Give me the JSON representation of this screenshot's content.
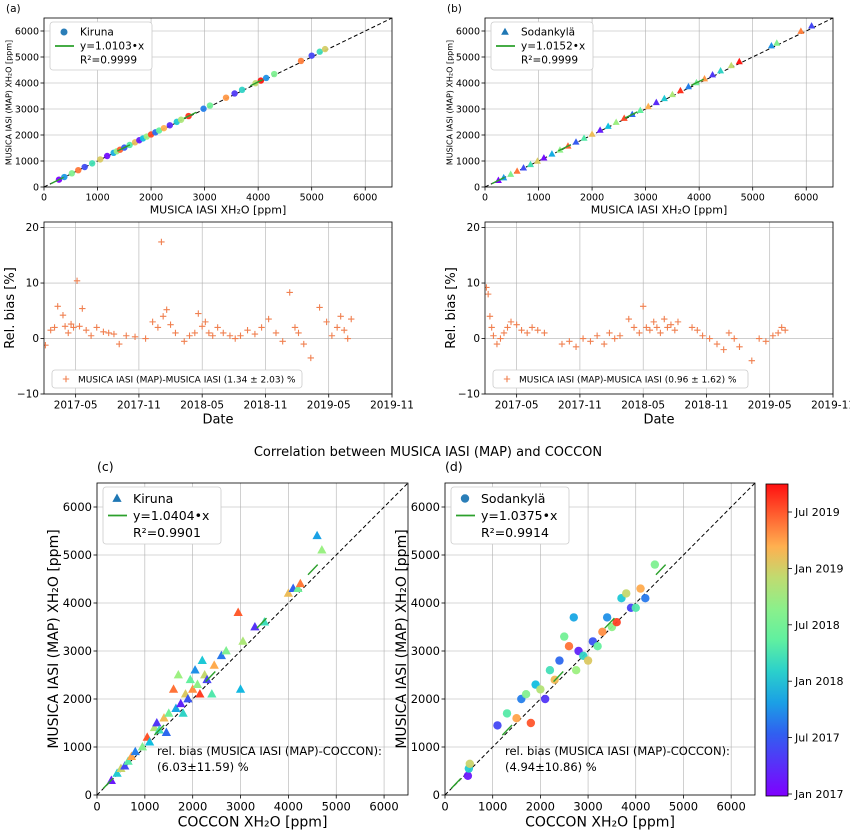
{
  "figure_title": "Correlation between MUSICA IASI (MAP) and COCCON",
  "colors": {
    "kiruna_marker": "#1f77b4",
    "fit_line": "#2ca02c",
    "bias_marker": "#f08050",
    "one_to_one": "#000000"
  },
  "colorbar": {
    "labels": [
      "Jul 2019",
      "Jan 2019",
      "Jul 2018",
      "Jan 2018",
      "Jul 2017",
      "Jan 2017"
    ],
    "colormap": "rainbow"
  },
  "chart_data": [
    {
      "panel": "(a)",
      "type": "scatter",
      "xlabel": "MUSICA IASI XH₂O [ppm]",
      "ylabel": "MUSICA IASI (MAP) XH₂O [ppm]",
      "xlim": [
        0,
        6500
      ],
      "ylim": [
        0,
        6500
      ],
      "xticks": [
        "0",
        "1000",
        "2000",
        "3000",
        "4000",
        "5000",
        "6000"
      ],
      "yticks": [
        "0",
        "1000",
        "2000",
        "3000",
        "4000",
        "5000",
        "6000"
      ],
      "legend": {
        "marker": "circle",
        "site": "Kiruna",
        "fit": "y=1.0103•x",
        "r2": "R²=0.9999"
      },
      "fit_slope": 1.0103,
      "grid": true,
      "x": [
        280,
        380,
        520,
        640,
        760,
        900,
        1050,
        1180,
        1300,
        1360,
        1420,
        1500,
        1600,
        1700,
        1780,
        1850,
        1920,
        2000,
        2080,
        2150,
        2240,
        2350,
        2480,
        2560,
        2700,
        2980,
        3100,
        3400,
        3560,
        3700,
        3950,
        4050,
        4150,
        4300,
        4800,
        5000,
        5150,
        5250
      ],
      "y": [
        283,
        384,
        525,
        647,
        768,
        909,
        1061,
        1192,
        1313,
        1374,
        1435,
        1515,
        1616,
        1717,
        1798,
        1869,
        1940,
        2021,
        2101,
        2172,
        2263,
        2374,
        2505,
        2587,
        2728,
        3011,
        3132,
        3435,
        3597,
        3738,
        3991,
        4092,
        4193,
        4344,
        4849,
        5052,
        5203,
        5304
      ]
    },
    {
      "panel": "(b)",
      "type": "scatter",
      "xlabel": "MUSICA IASI XH₂O [ppm]",
      "ylabel": "MUSICA IASI (MAP) XH₂O [ppm]",
      "xlim": [
        0,
        6500
      ],
      "ylim": [
        0,
        6500
      ],
      "xticks": [
        "0",
        "1000",
        "2000",
        "3000",
        "4000",
        "5000",
        "6000"
      ],
      "yticks": [
        "0",
        "1000",
        "2000",
        "3000",
        "4000",
        "5000",
        "6000"
      ],
      "legend": {
        "marker": "triangle",
        "site": "Sodankylä",
        "fit": "y=1.0152•x",
        "r2": "R²=0.9999"
      },
      "fit_slope": 1.0152,
      "grid": true,
      "x": [
        250,
        350,
        480,
        600,
        720,
        850,
        980,
        1100,
        1250,
        1400,
        1550,
        1700,
        1850,
        2000,
        2150,
        2300,
        2450,
        2600,
        2750,
        2900,
        3050,
        3200,
        3350,
        3500,
        3650,
        3800,
        3950,
        4100,
        4250,
        4400,
        4600,
        4750,
        5350,
        5450,
        5900,
        6100
      ],
      "y": [
        254,
        355,
        487,
        609,
        731,
        863,
        995,
        1117,
        1269,
        1421,
        1574,
        1726,
        1878,
        2030,
        2183,
        2335,
        2487,
        2640,
        2792,
        2944,
        3096,
        3249,
        3401,
        3553,
        3705,
        3858,
        4010,
        4162,
        4315,
        4467,
        4670,
        4822,
        5431,
        5533,
        5990,
        6193
      ]
    },
    {
      "panel": "(a-bias)",
      "type": "scatter",
      "xlabel": "Date",
      "ylabel": "Rel. bias [%]",
      "xlim": [
        "2017-02",
        "2019-11"
      ],
      "ylim": [
        -10,
        21
      ],
      "xticks": [
        "2017-05",
        "2017-11",
        "2018-05",
        "2018-11",
        "2019-05",
        "2019-11"
      ],
      "yticks": [
        "20",
        "10",
        "0",
        "−10"
      ],
      "legend": {
        "marker": "plus",
        "text": "MUSICA IASI (MAP)-MUSICA IASI (1.34 ± 2.03) %"
      },
      "grid": true,
      "x": [
        "2017-02-05",
        "2017-02-20",
        "2017-03-01",
        "2017-03-10",
        "2017-03-25",
        "2017-04-01",
        "2017-04-10",
        "2017-04-18",
        "2017-04-25",
        "2017-05-05",
        "2017-05-12",
        "2017-05-20",
        "2017-06-01",
        "2017-06-15",
        "2017-07-01",
        "2017-07-20",
        "2017-08-05",
        "2017-08-20",
        "2017-09-05",
        "2017-09-25",
        "2017-10-20",
        "2017-11-20",
        "2017-12-10",
        "2017-12-25",
        "2018-01-05",
        "2018-01-10",
        "2018-01-20",
        "2018-02-01",
        "2018-02-15",
        "2018-03-10",
        "2018-03-25",
        "2018-04-10",
        "2018-04-20",
        "2018-05-01",
        "2018-05-10",
        "2018-05-20",
        "2018-06-01",
        "2018-06-15",
        "2018-07-01",
        "2018-07-20",
        "2018-08-05",
        "2018-08-20",
        "2018-09-10",
        "2018-10-01",
        "2018-10-20",
        "2018-11-10",
        "2018-12-01",
        "2018-12-20",
        "2019-01-10",
        "2019-01-25",
        "2019-02-05",
        "2019-02-20",
        "2019-03-10",
        "2019-04-05",
        "2019-04-25",
        "2019-05-10",
        "2019-05-25",
        "2019-06-05",
        "2019-06-15",
        "2019-06-25",
        "2019-07-05"
      ],
      "y": [
        -1.2,
        1.5,
        2.0,
        5.8,
        4.2,
        2.2,
        1.0,
        2.6,
        2.0,
        10.4,
        2.2,
        5.4,
        1.5,
        0.5,
        2.0,
        1.2,
        1.0,
        0.8,
        -1.0,
        0.5,
        0.3,
        0.0,
        3.0,
        2.0,
        17.4,
        4.0,
        5.2,
        2.5,
        1.0,
        -0.5,
        0.5,
        1.0,
        4.5,
        2.2,
        3.0,
        1.0,
        0.5,
        2.0,
        1.0,
        0.5,
        0.0,
        0.5,
        1.5,
        0.8,
        2.0,
        3.5,
        1.0,
        -0.5,
        8.3,
        2.0,
        1.0,
        -1.0,
        -3.5,
        5.6,
        3.0,
        0.5,
        2.0,
        4.0,
        1.5,
        0.0,
        3.5
      ]
    },
    {
      "panel": "(b-bias)",
      "type": "scatter",
      "xlabel": "Date",
      "ylabel": "Rel. bias [%]",
      "xlim": [
        "2017-02",
        "2019-11"
      ],
      "ylim": [
        -10,
        21
      ],
      "xticks": [
        "2017-05",
        "2017-11",
        "2018-05",
        "2018-11",
        "2019-05",
        "2019-11"
      ],
      "yticks": [
        "20",
        "10",
        "0",
        "−10"
      ],
      "legend": {
        "marker": "plus",
        "text": "MUSICA IASI (MAP)-MUSICA IASI (0.96 ± 1.62) %"
      },
      "grid": true,
      "x": [
        "2017-02-05",
        "2017-02-10",
        "2017-02-15",
        "2017-02-20",
        "2017-02-25",
        "2017-03-05",
        "2017-03-15",
        "2017-03-25",
        "2017-04-05",
        "2017-04-15",
        "2017-05-01",
        "2017-05-15",
        "2017-06-01",
        "2017-06-15",
        "2017-07-01",
        "2017-07-20",
        "2017-09-10",
        "2017-10-01",
        "2017-10-20",
        "2017-11-10",
        "2017-12-01",
        "2017-12-20",
        "2018-01-10",
        "2018-01-25",
        "2018-02-10",
        "2018-02-25",
        "2018-03-20",
        "2018-04-05",
        "2018-04-20",
        "2018-05-01",
        "2018-05-10",
        "2018-05-20",
        "2018-06-01",
        "2018-06-10",
        "2018-06-20",
        "2018-07-01",
        "2018-07-10",
        "2018-07-20",
        "2018-08-01",
        "2018-08-10",
        "2018-09-20",
        "2018-10-05",
        "2018-10-20",
        "2018-11-10",
        "2018-12-01",
        "2018-12-20",
        "2019-01-05",
        "2019-01-20",
        "2019-02-05",
        "2019-03-10",
        "2019-04-01",
        "2019-04-20",
        "2019-05-10",
        "2019-05-25",
        "2019-06-05",
        "2019-06-15"
      ],
      "y": [
        9.2,
        8.0,
        4.0,
        2.0,
        0.5,
        -1.0,
        0.0,
        1.0,
        2.0,
        3.0,
        2.5,
        1.5,
        1.0,
        2.0,
        1.5,
        1.0,
        -1.0,
        -0.5,
        -1.5,
        0.0,
        -0.5,
        0.5,
        -1.0,
        1.0,
        0.0,
        0.5,
        3.5,
        2.0,
        1.0,
        5.8,
        2.0,
        1.5,
        3.0,
        2.0,
        1.0,
        3.5,
        2.0,
        2.5,
        1.5,
        3.0,
        2.0,
        1.5,
        0.5,
        0.0,
        -1.0,
        -2.0,
        1.0,
        0.0,
        -1.5,
        -4.0,
        0.0,
        -0.5,
        0.5,
        1.0,
        2.0,
        1.5
      ]
    },
    {
      "panel": "(c)",
      "type": "scatter",
      "xlabel": "COCCON XH₂O [ppm]",
      "ylabel": "MUSICA IASI (MAP) XH₂O [ppm]",
      "xlim": [
        0,
        6500
      ],
      "ylim": [
        0,
        6500
      ],
      "xticks": [
        "0",
        "1000",
        "2000",
        "3000",
        "4000",
        "5000",
        "6000"
      ],
      "yticks": [
        "0",
        "1000",
        "2000",
        "3000",
        "4000",
        "5000",
        "6000"
      ],
      "legend": {
        "marker": "triangle",
        "site": "Kiruna",
        "fit": "y=1.0404•x",
        "r2": "R²=0.9901"
      },
      "fit_slope": 1.0404,
      "annotation": [
        "rel. bias (MUSICA IASI (MAP)-COCCON):",
        "(6.03±11.59) %"
      ],
      "grid": true,
      "x": [
        300,
        420,
        500,
        580,
        650,
        720,
        800,
        950,
        1050,
        1100,
        1200,
        1250,
        1300,
        1400,
        1450,
        1500,
        1600,
        1650,
        1700,
        1750,
        1800,
        1850,
        1900,
        1950,
        2000,
        2050,
        2100,
        2150,
        2200,
        2250,
        2300,
        2400,
        2450,
        2600,
        2700,
        2950,
        3000,
        3050,
        3300,
        3500,
        4000,
        4100,
        4200,
        4250,
        4600,
        4700
      ],
      "y": [
        300,
        450,
        550,
        600,
        700,
        800,
        900,
        1000,
        1200,
        1100,
        1400,
        1500,
        1350,
        1600,
        1300,
        1700,
        2200,
        1800,
        2500,
        1900,
        1700,
        2100,
        2000,
        2400,
        2200,
        2600,
        2300,
        2100,
        2800,
        2500,
        2400,
        2100,
        2700,
        2900,
        3000,
        3800,
        2200,
        3200,
        3500,
        3600,
        4200,
        4300,
        4300,
        4400,
        5400,
        5100
      ],
      "colors_by_date": true
    },
    {
      "panel": "(d)",
      "type": "scatter",
      "xlabel": "COCCON XH₂O [ppm]",
      "ylabel": "MUSICA IASI (MAP) XH₂O [ppm]",
      "xlim": [
        0,
        6500
      ],
      "ylim": [
        0,
        6500
      ],
      "xticks": [
        "0",
        "1000",
        "2000",
        "3000",
        "4000",
        "5000",
        "6000"
      ],
      "yticks": [
        "0",
        "1000",
        "2000",
        "3000",
        "4000",
        "5000",
        "6000"
      ],
      "legend": {
        "marker": "circle",
        "site": "Sodankylä",
        "fit": "y=1.0375•x",
        "r2": "R²=0.9914"
      },
      "fit_slope": 1.0375,
      "annotation": [
        "rel. bias (MUSICA IASI (MAP)-COCCON):",
        "(4.94±10.86) %"
      ],
      "grid": true,
      "x": [
        480,
        500,
        520,
        1100,
        1300,
        1500,
        1600,
        1700,
        1800,
        1900,
        2000,
        2100,
        2200,
        2300,
        2400,
        2500,
        2600,
        2700,
        2750,
        2800,
        2900,
        3000,
        3100,
        3200,
        3300,
        3400,
        3500,
        3600,
        3700,
        3800,
        3900,
        4000,
        4100,
        4200,
        4400
      ],
      "y": [
        400,
        550,
        650,
        1450,
        1700,
        1600,
        2000,
        2100,
        1500,
        2300,
        2200,
        2000,
        2600,
        2400,
        2800,
        3300,
        3100,
        3700,
        2600,
        3000,
        2900,
        2800,
        3200,
        3100,
        3400,
        3700,
        3500,
        3600,
        4100,
        4200,
        3900,
        3900,
        4300,
        4100,
        4800
      ],
      "colors_by_date": true
    }
  ]
}
